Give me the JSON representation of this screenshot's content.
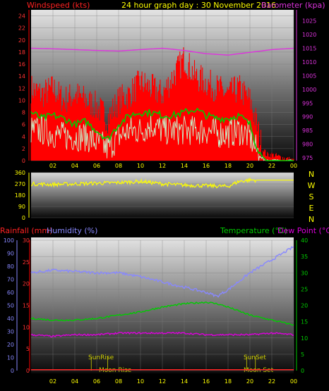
{
  "header": {
    "left": "Windspeed (kts)",
    "center": "24 hour graph day : 30 November 2016",
    "right": "Barometer (kpa)"
  },
  "bottom_header": {
    "rainfall": "Rainfall (mm)",
    "humidity": "Humidity (%)",
    "temperature": "Temperature (°C)",
    "dewpoint": "Dew Point (°C)"
  },
  "compass": [
    "N",
    "W",
    "S",
    "E",
    "N"
  ],
  "events": {
    "sunrise": "SunRise",
    "sunset": "SunSet",
    "moonrise": "Moon Rise",
    "moonset": "Moon Set"
  },
  "colors": {
    "wind_gust": "#ff0000",
    "wind_avg": "#00cc00",
    "wind_speed": "#c8f0c8",
    "barometer": "#dd33dd",
    "direction": "#ffff00",
    "humidity": "#8888ff",
    "temperature": "#00cc00",
    "dewpoint": "#dd00dd",
    "rainfall": "#ff2222",
    "event_label": "#cccc00"
  },
  "chart_data": [
    {
      "type": "line",
      "name": "wind-barometer",
      "x_ticks": [
        "02",
        "04",
        "06",
        "08",
        "10",
        "12",
        "14",
        "16",
        "18",
        "20",
        "22",
        "00"
      ],
      "y_left": {
        "label": "Windspeed (kts)",
        "ticks": [
          0,
          2,
          4,
          6,
          8,
          10,
          12,
          14,
          16,
          18,
          20,
          22,
          24
        ],
        "range": [
          0,
          25
        ]
      },
      "y_right": {
        "label": "Barometer (kpa)",
        "ticks": [
          975,
          980,
          985,
          990,
          995,
          1000,
          1005,
          1010,
          1015,
          1020,
          1025
        ],
        "range": [
          974,
          1029
        ]
      },
      "series": [
        {
          "key": "gust",
          "hours": [
            0,
            1,
            2,
            3,
            4,
            5,
            6,
            7,
            8,
            9,
            10,
            11,
            12,
            13,
            14,
            15,
            16,
            17,
            18,
            19,
            20,
            20.5,
            21,
            21.5,
            22,
            23,
            24
          ],
          "values": [
            12,
            11,
            12,
            10,
            11,
            10,
            9,
            7,
            10,
            11,
            13,
            12,
            11,
            14,
            17,
            14,
            13,
            12,
            11,
            12,
            10,
            7,
            3,
            1,
            1,
            0.5,
            0
          ]
        },
        {
          "key": "average",
          "hours": [
            0,
            1,
            2,
            3,
            4,
            5,
            6,
            7,
            8,
            9,
            10,
            11,
            12,
            13,
            14,
            15,
            16,
            17,
            18,
            19,
            20,
            20.5,
            21,
            21.5,
            22,
            23,
            24
          ],
          "values": [
            8,
            7,
            7.5,
            7,
            6,
            6.5,
            5,
            3.5,
            6,
            7.5,
            8,
            8,
            7.5,
            7.5,
            8,
            8.5,
            7.5,
            7,
            7,
            7.5,
            6,
            3,
            1,
            0,
            0,
            0,
            0
          ]
        },
        {
          "key": "speed",
          "hours": [
            0,
            1,
            2,
            3,
            4,
            5,
            6,
            7,
            8,
            9,
            10,
            11,
            12,
            13,
            14,
            15,
            16,
            17,
            18,
            19,
            20,
            20.5,
            21,
            21.5,
            22,
            23,
            24
          ],
          "values": [
            5,
            5,
            4.5,
            4,
            4,
            4,
            3,
            2,
            4,
            5,
            5,
            6,
            5,
            5,
            5,
            5,
            5,
            4.5,
            4.5,
            5,
            4,
            2,
            0.5,
            0,
            0,
            0,
            0
          ]
        },
        {
          "key": "barometer",
          "hours": [
            0,
            2,
            4,
            6,
            8,
            10,
            12,
            14,
            16,
            18,
            20,
            22,
            24
          ],
          "values": [
            1015,
            1014.8,
            1014.5,
            1014.2,
            1014,
            1014.5,
            1015,
            1014.2,
            1013,
            1012.5,
            1013.5,
            1014.5,
            1015
          ]
        }
      ]
    },
    {
      "type": "line",
      "name": "wind-direction",
      "y_ticks": [
        0,
        90,
        180,
        270,
        360
      ],
      "y_tick_labels": [
        "0",
        "90",
        "180",
        "270",
        "360"
      ],
      "series": [
        {
          "key": "direction",
          "hours": [
            0,
            2,
            4,
            6,
            8,
            10,
            12,
            14,
            16,
            18,
            19,
            20,
            22,
            24
          ],
          "values": [
            270,
            265,
            270,
            275,
            280,
            290,
            270,
            260,
            255,
            250,
            290,
            300,
            300,
            300
          ]
        }
      ]
    },
    {
      "type": "line",
      "name": "temp-humidity-rain",
      "y_left_rain": {
        "label": "Rainfall (mm)",
        "ticks": [
          0,
          5,
          10,
          15,
          20,
          25,
          30
        ],
        "range": [
          0,
          30
        ]
      },
      "y_left_humidity": {
        "label": "Humidity (%)",
        "ticks": [
          0,
          10,
          20,
          30,
          40,
          50,
          60,
          70,
          80,
          90,
          100
        ],
        "range": [
          0,
          100
        ]
      },
      "y_right": {
        "label": "Temperature (°C)",
        "ticks": [
          0,
          5,
          10,
          15,
          20,
          25,
          30,
          35,
          40
        ],
        "range": [
          0,
          40
        ]
      },
      "x_ticks": [
        "02",
        "04",
        "06",
        "08",
        "10",
        "12",
        "14",
        "16",
        "18",
        "20",
        "22",
        "00"
      ],
      "series": [
        {
          "key": "humidity",
          "hours": [
            0,
            2,
            4,
            6,
            8,
            10,
            12,
            14,
            16,
            17,
            18,
            20,
            22,
            24
          ],
          "values": [
            75,
            77,
            76,
            75,
            75,
            72,
            68,
            64,
            60,
            57,
            62,
            75,
            85,
            95
          ]
        },
        {
          "key": "temperature",
          "hours": [
            0,
            2,
            4,
            6,
            8,
            10,
            12,
            14,
            16,
            17,
            18,
            20,
            22,
            24
          ],
          "values": [
            16,
            15.5,
            15.5,
            16,
            17,
            18,
            19.5,
            20.5,
            21,
            20.5,
            19.5,
            17,
            15.5,
            14
          ]
        },
        {
          "key": "dewpoint",
          "hours": [
            0,
            2,
            4,
            6,
            8,
            10,
            12,
            14,
            16,
            18,
            20,
            22,
            24
          ],
          "values": [
            11,
            10.5,
            11,
            11,
            11.5,
            11.5,
            11.5,
            11.5,
            11,
            11,
            11,
            11.5,
            11
          ]
        },
        {
          "key": "rainfall",
          "hours": [
            0,
            24
          ],
          "values": [
            0.2,
            0.2
          ]
        }
      ],
      "events": [
        {
          "key": "sunrise",
          "hour": 5.5
        },
        {
          "key": "sunset",
          "hour": 19.7
        },
        {
          "key": "moonrise",
          "hour": 7.0
        },
        {
          "key": "moonset",
          "hour": 20.5
        }
      ]
    }
  ]
}
